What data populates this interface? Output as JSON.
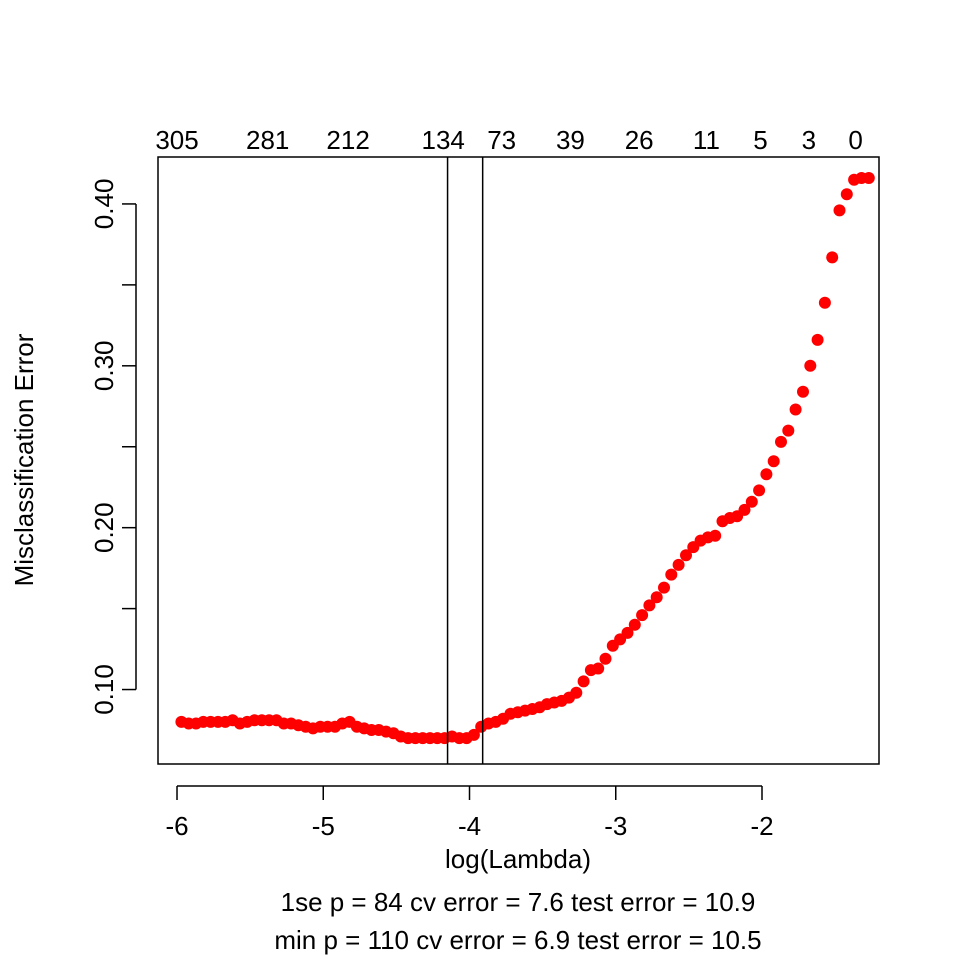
{
  "chart_data": {
    "type": "scatter",
    "xlabel": "log(Lambda)",
    "ylabel": "Misclassification Error",
    "xlim": [
      -6.13,
      -1.2
    ],
    "ylim": [
      0.054,
      0.429
    ],
    "x_ticks": [
      {
        "value": -6,
        "label": "-6"
      },
      {
        "value": -5,
        "label": "-5"
      },
      {
        "value": -4,
        "label": "-4"
      },
      {
        "value": -3,
        "label": "-3"
      },
      {
        "value": -2,
        "label": "-2"
      }
    ],
    "y_ticks": [
      {
        "value": 0.1,
        "label": "0.10"
      },
      {
        "value": 0.15,
        "label": ""
      },
      {
        "value": 0.2,
        "label": "0.20"
      },
      {
        "value": 0.25,
        "label": ""
      },
      {
        "value": 0.3,
        "label": "0.30"
      },
      {
        "value": 0.35,
        "label": ""
      },
      {
        "value": 0.4,
        "label": "0.40"
      }
    ],
    "top_ticks": [
      {
        "value": -6.0,
        "label": "305"
      },
      {
        "value": -5.38,
        "label": "281"
      },
      {
        "value": -4.83,
        "label": "212"
      },
      {
        "value": -4.18,
        "label": "134"
      },
      {
        "value": -3.78,
        "label": "73"
      },
      {
        "value": -3.31,
        "label": "39"
      },
      {
        "value": -2.84,
        "label": "26"
      },
      {
        "value": -2.38,
        "label": "11"
      },
      {
        "value": -2.01,
        "label": "5"
      },
      {
        "value": -1.68,
        "label": "3"
      },
      {
        "value": -1.36,
        "label": "0"
      }
    ],
    "vlines": [
      -4.15,
      -3.91
    ],
    "subtitle_lines": [
      "1se p = 84 cv error = 7.6 test error = 10.9",
      "min p = 110 cv error = 6.9 test error = 10.5"
    ],
    "point_color": "#ff0000",
    "points": [
      [
        -5.97,
        0.08
      ],
      [
        -5.92,
        0.079
      ],
      [
        -5.87,
        0.079
      ],
      [
        -5.82,
        0.08
      ],
      [
        -5.77,
        0.08
      ],
      [
        -5.72,
        0.08
      ],
      [
        -5.67,
        0.08
      ],
      [
        -5.62,
        0.081
      ],
      [
        -5.57,
        0.079
      ],
      [
        -5.52,
        0.08
      ],
      [
        -5.47,
        0.081
      ],
      [
        -5.42,
        0.081
      ],
      [
        -5.37,
        0.081
      ],
      [
        -5.32,
        0.081
      ],
      [
        -5.27,
        0.079
      ],
      [
        -5.22,
        0.079
      ],
      [
        -5.17,
        0.078
      ],
      [
        -5.12,
        0.077
      ],
      [
        -5.07,
        0.076
      ],
      [
        -5.02,
        0.077
      ],
      [
        -4.97,
        0.077
      ],
      [
        -4.92,
        0.077
      ],
      [
        -4.87,
        0.079
      ],
      [
        -4.82,
        0.08
      ],
      [
        -4.77,
        0.077
      ],
      [
        -4.72,
        0.076
      ],
      [
        -4.67,
        0.075
      ],
      [
        -4.62,
        0.075
      ],
      [
        -4.57,
        0.074
      ],
      [
        -4.52,
        0.073
      ],
      [
        -4.47,
        0.071
      ],
      [
        -4.42,
        0.07
      ],
      [
        -4.37,
        0.07
      ],
      [
        -4.32,
        0.07
      ],
      [
        -4.27,
        0.07
      ],
      [
        -4.22,
        0.07
      ],
      [
        -4.17,
        0.07
      ],
      [
        -4.12,
        0.071
      ],
      [
        -4.07,
        0.07
      ],
      [
        -4.02,
        0.07
      ],
      [
        -3.97,
        0.072
      ],
      [
        -3.92,
        0.077
      ],
      [
        -3.87,
        0.079
      ],
      [
        -3.82,
        0.08
      ],
      [
        -3.77,
        0.082
      ],
      [
        -3.72,
        0.085
      ],
      [
        -3.67,
        0.086
      ],
      [
        -3.62,
        0.087
      ],
      [
        -3.57,
        0.088
      ],
      [
        -3.52,
        0.089
      ],
      [
        -3.47,
        0.091
      ],
      [
        -3.42,
        0.092
      ],
      [
        -3.37,
        0.093
      ],
      [
        -3.32,
        0.095
      ],
      [
        -3.27,
        0.098
      ],
      [
        -3.22,
        0.105
      ],
      [
        -3.17,
        0.112
      ],
      [
        -3.12,
        0.113
      ],
      [
        -3.07,
        0.119
      ],
      [
        -3.02,
        0.127
      ],
      [
        -2.97,
        0.131
      ],
      [
        -2.92,
        0.135
      ],
      [
        -2.87,
        0.14
      ],
      [
        -2.82,
        0.146
      ],
      [
        -2.77,
        0.152
      ],
      [
        -2.72,
        0.157
      ],
      [
        -2.67,
        0.163
      ],
      [
        -2.62,
        0.171
      ],
      [
        -2.57,
        0.177
      ],
      [
        -2.52,
        0.183
      ],
      [
        -2.47,
        0.188
      ],
      [
        -2.42,
        0.192
      ],
      [
        -2.37,
        0.194
      ],
      [
        -2.32,
        0.195
      ],
      [
        -2.27,
        0.204
      ],
      [
        -2.22,
        0.206
      ],
      [
        -2.17,
        0.207
      ],
      [
        -2.12,
        0.211
      ],
      [
        -2.07,
        0.216
      ],
      [
        -2.02,
        0.223
      ],
      [
        -1.97,
        0.233
      ],
      [
        -1.92,
        0.241
      ],
      [
        -1.87,
        0.253
      ],
      [
        -1.82,
        0.26
      ],
      [
        -1.77,
        0.273
      ],
      [
        -1.72,
        0.284
      ],
      [
        -1.67,
        0.3
      ],
      [
        -1.62,
        0.316
      ],
      [
        -1.57,
        0.339
      ],
      [
        -1.52,
        0.367
      ],
      [
        -1.47,
        0.396
      ],
      [
        -1.42,
        0.406
      ],
      [
        -1.37,
        0.415
      ],
      [
        -1.32,
        0.416
      ],
      [
        -1.27,
        0.416
      ]
    ]
  }
}
